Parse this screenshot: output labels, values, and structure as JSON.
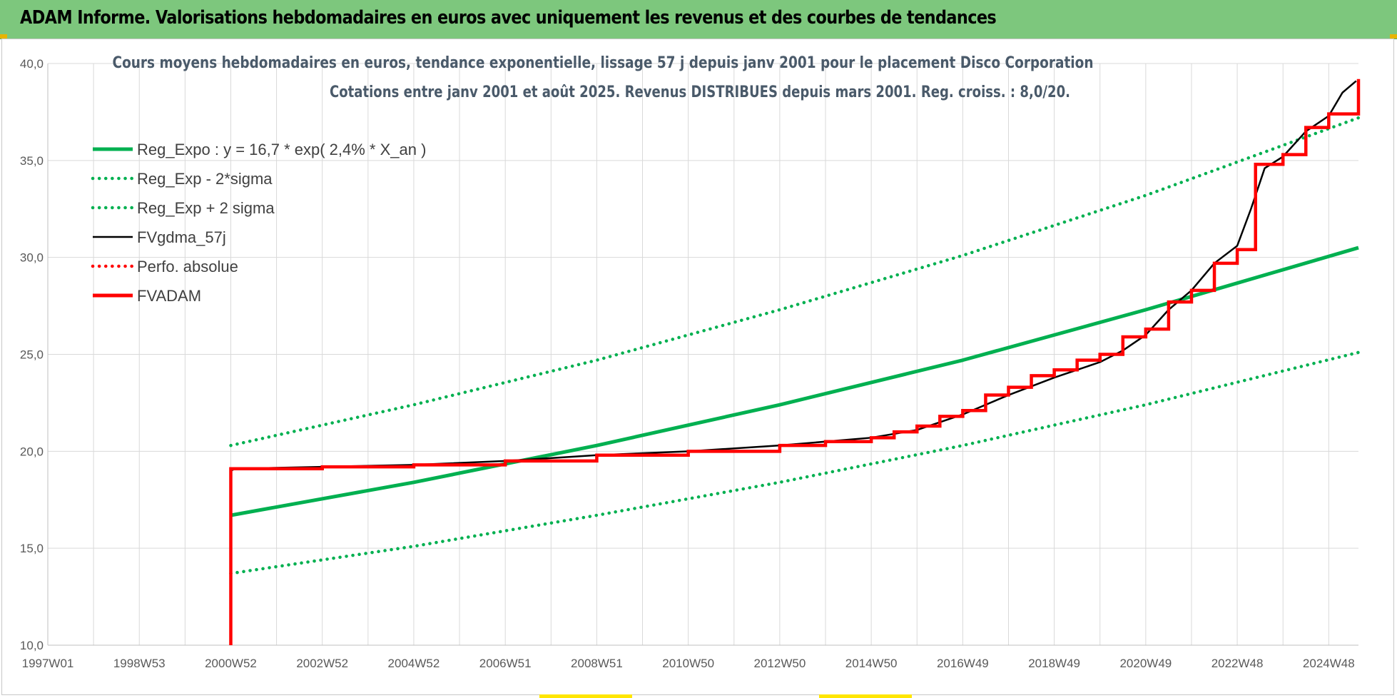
{
  "banner": {
    "title": "ADAM Informe. Valorisations hebdomadaires en euros avec uniquement les revenus et des courbes de tendances"
  },
  "colors": {
    "banner_bg": "#7dc77d",
    "reg_green": "#00b050",
    "red": "#ff0000",
    "black": "#000000",
    "grid": "#d9d9d9"
  },
  "chart_data": {
    "type": "line",
    "title": [
      "Cours moyens hebdomadaires en euros, tendance exponentielle, lissage 57 j depuis janv 2001 pour le placement Disco Corporation",
      "Cotations entre janv 2001 et août 2025.  Revenus DISTRIBUES depuis mars 2001. Reg. croiss. : 8,0/20."
    ],
    "xlabel": "",
    "ylabel": "",
    "xlim": [
      1997.0,
      2025.65
    ],
    "ylim": [
      10,
      40
    ],
    "y_ticks": [
      "10,0",
      "15,0",
      "20,0",
      "25,0",
      "30,0",
      "35,0",
      "40,0"
    ],
    "x_ticks": [
      {
        "label": "1997W01",
        "x": 1997.0
      },
      {
        "label": "1998W53",
        "x": 1999.0
      },
      {
        "label": "2000W52",
        "x": 2001.0
      },
      {
        "label": "2002W52",
        "x": 2003.0
      },
      {
        "label": "2004W52",
        "x": 2005.0
      },
      {
        "label": "2006W51",
        "x": 2007.0
      },
      {
        "label": "2008W51",
        "x": 2009.0
      },
      {
        "label": "2010W50",
        "x": 2011.0
      },
      {
        "label": "2012W50",
        "x": 2013.0
      },
      {
        "label": "2014W50",
        "x": 2015.0
      },
      {
        "label": "2016W49",
        "x": 2017.0
      },
      {
        "label": "2018W49",
        "x": 2019.0
      },
      {
        "label": "2020W49",
        "x": 2021.0
      },
      {
        "label": "2022W48",
        "x": 2023.0
      },
      {
        "label": "2024W48",
        "x": 2025.0
      }
    ],
    "minor_grid_years": [
      1998,
      1999,
      2000,
      2001,
      2002,
      2003,
      2004,
      2005,
      2006,
      2007,
      2008,
      2009,
      2010,
      2011,
      2012,
      2013,
      2014,
      2015,
      2016,
      2017,
      2018,
      2019,
      2020,
      2021,
      2022,
      2023,
      2024,
      2025
    ],
    "grid": true,
    "legend_position": "top-left",
    "series": [
      {
        "name": "Reg_Expo : y = 16,7 * exp( 2,4% *  X_an )",
        "style": "solid-thick",
        "color": "#00b050",
        "x": [
          2001.0,
          2005.0,
          2009.0,
          2013.0,
          2017.0,
          2021.0,
          2025.65
        ],
        "y": [
          16.7,
          18.4,
          20.3,
          22.4,
          24.7,
          27.3,
          30.5
        ]
      },
      {
        "name": "Reg_Exp - 2*sigma",
        "style": "dotted",
        "color": "#00b050",
        "x": [
          2001.0,
          2005.0,
          2009.0,
          2013.0,
          2017.0,
          2021.0,
          2025.65
        ],
        "y": [
          13.7,
          15.1,
          16.7,
          18.4,
          20.3,
          22.4,
          25.1
        ]
      },
      {
        "name": "Reg_Exp + 2 sigma",
        "style": "dotted",
        "color": "#00b050",
        "x": [
          2001.0,
          2005.0,
          2009.0,
          2013.0,
          2017.0,
          2021.0,
          2025.65
        ],
        "y": [
          20.3,
          22.4,
          24.7,
          27.3,
          30.1,
          33.2,
          37.2
        ]
      },
      {
        "name": "FVgdma_57j",
        "style": "solid",
        "color": "#000000",
        "x": [
          2001.0,
          2001.1,
          2003.0,
          2005.0,
          2007.0,
          2009.0,
          2011.0,
          2013.0,
          2015.0,
          2016.0,
          2017.0,
          2018.0,
          2019.0,
          2020.0,
          2020.5,
          2021.0,
          2021.5,
          2022.0,
          2022.5,
          2023.0,
          2023.3,
          2023.6,
          2024.0,
          2024.5,
          2025.0,
          2025.3,
          2025.6
        ],
        "y": [
          19.0,
          19.1,
          19.2,
          19.3,
          19.5,
          19.8,
          20.0,
          20.3,
          20.7,
          21.1,
          21.9,
          22.9,
          23.8,
          24.6,
          25.2,
          26.0,
          27.3,
          28.3,
          29.7,
          30.6,
          32.5,
          34.6,
          35.2,
          36.5,
          37.3,
          38.5,
          39.1
        ]
      },
      {
        "name": "Perfo. absolue",
        "style": "dotted",
        "color": "#ff0000",
        "x": [],
        "y": []
      },
      {
        "name": "FVADAM",
        "style": "step-thick",
        "color": "#ff0000",
        "x": [
          2001.0,
          2001.0,
          2003.0,
          2005.0,
          2007.0,
          2009.0,
          2011.0,
          2013.0,
          2014.0,
          2015.0,
          2015.5,
          2016.0,
          2016.5,
          2017.0,
          2017.5,
          2018.0,
          2018.5,
          2019.0,
          2019.5,
          2020.0,
          2020.5,
          2021.0,
          2021.5,
          2022.0,
          2022.5,
          2023.0,
          2023.4,
          2024.0,
          2024.5,
          2025.0,
          2025.65
        ],
        "y": [
          10.0,
          19.1,
          19.2,
          19.3,
          19.5,
          19.8,
          20.0,
          20.3,
          20.5,
          20.7,
          21.0,
          21.3,
          21.8,
          22.1,
          22.9,
          23.3,
          23.9,
          24.2,
          24.7,
          25.0,
          25.9,
          26.3,
          27.7,
          28.3,
          29.7,
          30.4,
          34.8,
          35.3,
          36.7,
          37.4,
          39.2
        ]
      }
    ]
  }
}
